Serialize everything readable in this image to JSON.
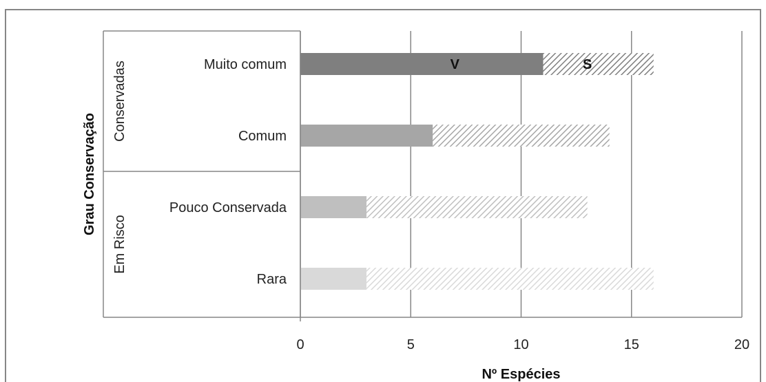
{
  "chart_data": {
    "type": "bar",
    "orientation": "horizontal",
    "stacked": true,
    "categories": [
      "Muito comum",
      "Comum",
      "Pouco Conservada",
      "Rara"
    ],
    "groups": [
      {
        "label": "Conservadas",
        "categories": [
          "Muito comum",
          "Comum"
        ]
      },
      {
        "label": "Em Risco",
        "categories": [
          "Pouco Conservada",
          "Rara"
        ]
      }
    ],
    "series": [
      {
        "name": "V",
        "values": [
          11,
          6,
          3,
          3
        ],
        "colors": [
          "#7f7f7f",
          "#a6a6a6",
          "#bfbfbf",
          "#d9d9d9"
        ],
        "pattern": "solid"
      },
      {
        "name": "S",
        "values": [
          5,
          8,
          10,
          13
        ],
        "colors": [
          "#7f7f7f",
          "#a6a6a6",
          "#bfbfbf",
          "#d9d9d9"
        ],
        "pattern": "diagonal-hatch"
      }
    ],
    "xlim": [
      0,
      20
    ],
    "xticks": [
      0,
      5,
      10,
      15,
      20
    ],
    "xlabel": "Nº Espécies",
    "ylabel": "Grau Conservação",
    "grid": "vertical",
    "legend": "none"
  }
}
